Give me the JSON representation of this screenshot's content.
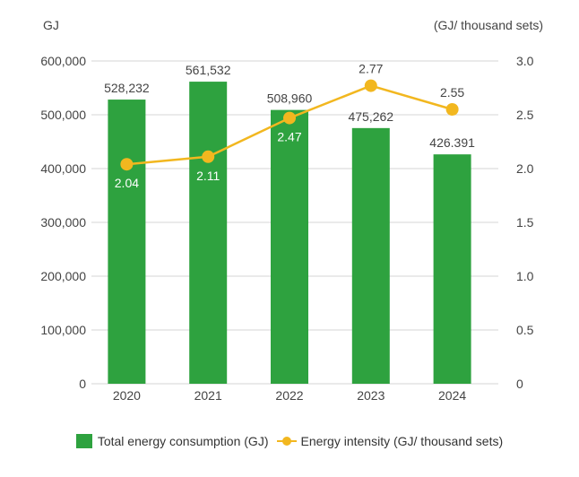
{
  "chart_data": {
    "type": "bar+line",
    "categories": [
      "2020",
      "2021",
      "2022",
      "2023",
      "2024"
    ],
    "left_axis": {
      "unit_label": "GJ",
      "ylim": [
        0,
        600000
      ],
      "ticks": [
        "0",
        "100,000",
        "200,000",
        "300,000",
        "400,000",
        "500,000",
        "600,000"
      ]
    },
    "right_axis": {
      "unit_label": "(GJ/ thousand sets)",
      "ylim": [
        0,
        3.0
      ],
      "ticks": [
        "0",
        "0.5",
        "1.0",
        "1.5",
        "2.0",
        "2.5",
        "3.0"
      ]
    },
    "grid": true,
    "legend_position": "bottom",
    "series": [
      {
        "name": "Total energy consumption (GJ)",
        "type": "bar",
        "axis": "left",
        "color": "#2ea23f",
        "values": [
          528232,
          561532,
          508960,
          475262,
          426391
        ],
        "labels": [
          "528,232",
          "561,532",
          "508,960",
          "475,262",
          "426.391"
        ]
      },
      {
        "name": "Energy intensity (GJ/ thousand sets)",
        "type": "line",
        "axis": "right",
        "color": "#f2b71f",
        "values": [
          2.04,
          2.11,
          2.47,
          2.77,
          2.55
        ],
        "labels": [
          "2.04",
          "2.11",
          "2.47",
          "2.77",
          "2.55"
        ]
      }
    ]
  }
}
